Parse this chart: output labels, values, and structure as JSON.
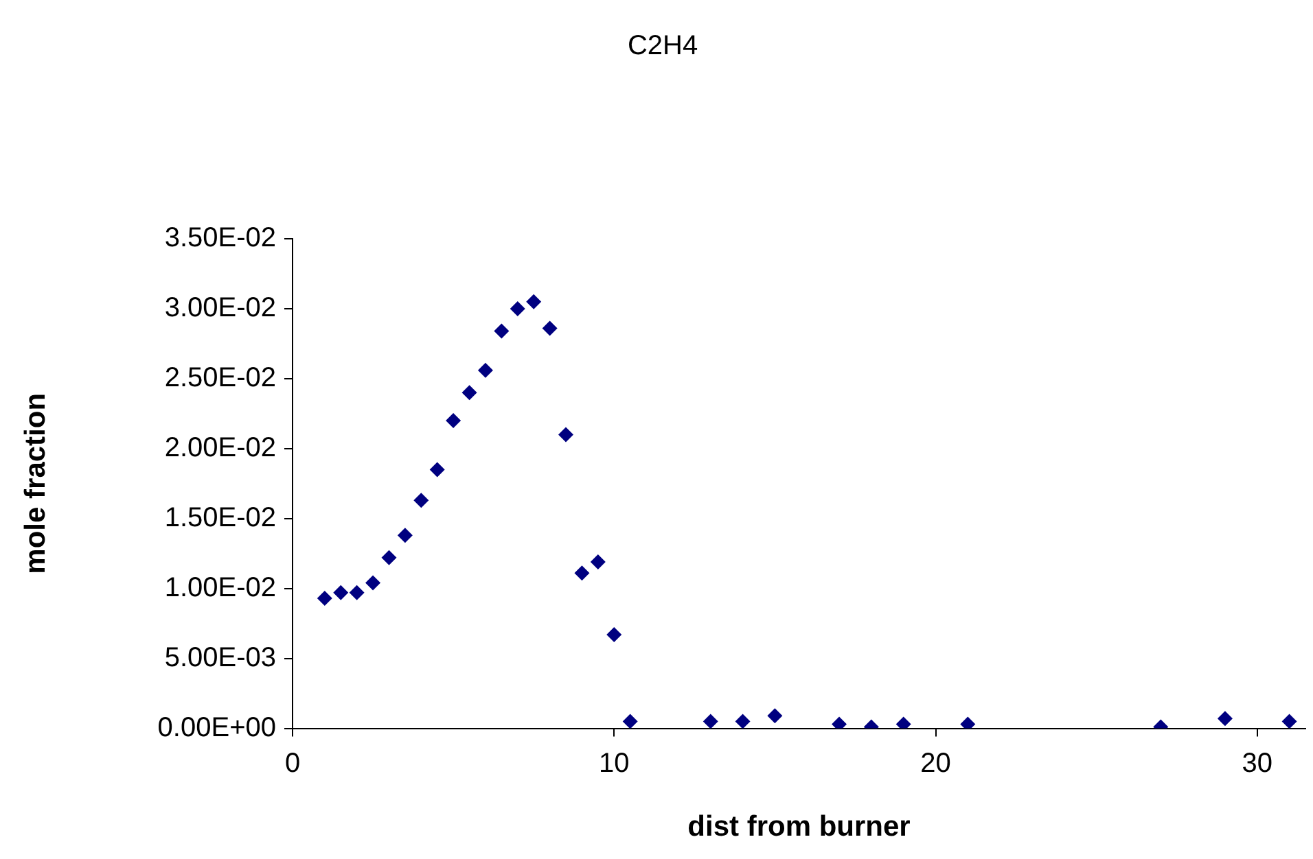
{
  "chart_data": {
    "type": "scatter",
    "title": "C2H4",
    "xlabel": "dist from burner",
    "ylabel": "mole fraction",
    "marker": "diamond",
    "grid": false,
    "legend": false,
    "xlim": [
      0,
      31.5
    ],
    "xticks": [
      0,
      10,
      20,
      30
    ],
    "ylim": [
      0,
      0.035
    ],
    "yticks": [
      {
        "value": 0,
        "label": "0.00E+00"
      },
      {
        "value": 0.005,
        "label": "5.00E-03"
      },
      {
        "value": 0.01,
        "label": "1.00E-02"
      },
      {
        "value": 0.015,
        "label": "1.50E-02"
      },
      {
        "value": 0.02,
        "label": "2.00E-02"
      },
      {
        "value": 0.025,
        "label": "2.50E-02"
      },
      {
        "value": 0.03,
        "label": "3.00E-02"
      },
      {
        "value": 0.035,
        "label": "3.50E-02"
      }
    ],
    "series": [
      {
        "color": "#000080",
        "x": [
          1,
          1.5,
          2,
          2.5,
          3,
          3.5,
          4,
          4.5,
          5,
          5.5,
          6,
          6.5,
          7,
          7.5,
          8,
          8.5,
          9,
          9.5,
          10,
          10.5,
          13,
          14,
          15,
          17,
          18,
          19,
          21,
          27,
          29,
          31
        ],
        "values": [
          0.0093,
          0.0097,
          0.0097,
          0.0104,
          0.0122,
          0.0138,
          0.0163,
          0.0185,
          0.022,
          0.024,
          0.0256,
          0.0284,
          0.03,
          0.0305,
          0.0286,
          0.021,
          0.0111,
          0.0119,
          0.0067,
          0.0005,
          0.0005,
          0.0005,
          0.0009,
          0.0003,
          0.0001,
          0.0003,
          0.0003,
          0.0001,
          0.0007,
          0.0005
        ]
      }
    ]
  }
}
